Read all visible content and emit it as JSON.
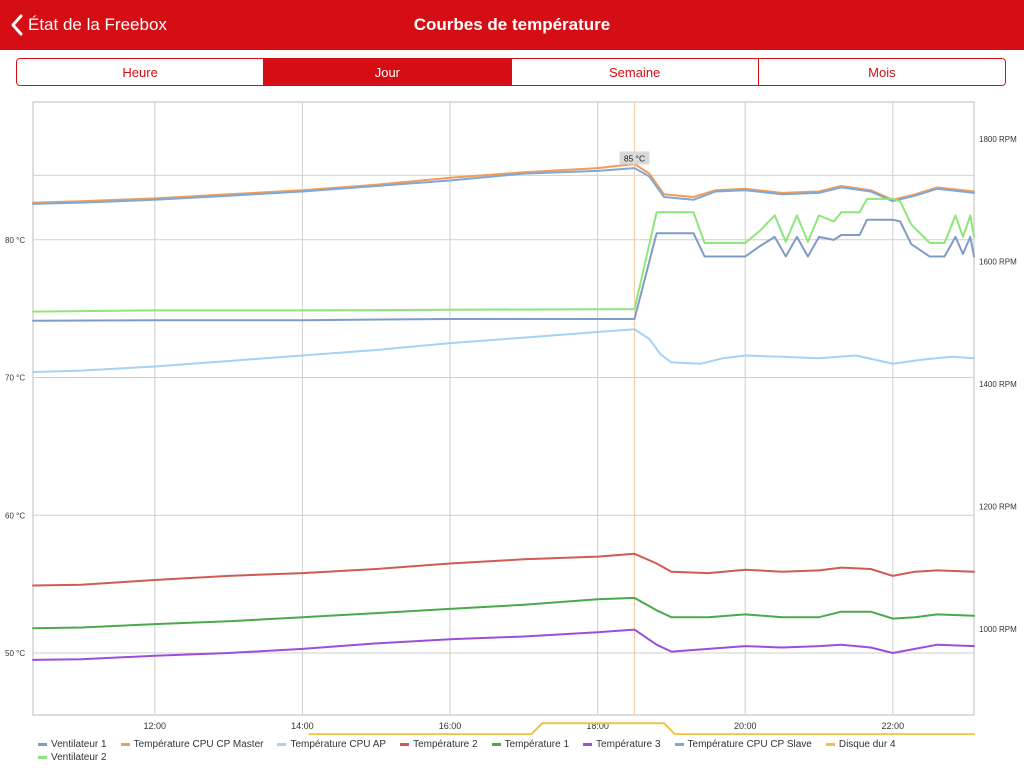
{
  "navbar": {
    "back_label": "État de la Freebox",
    "title": "Courbes de température",
    "background": "#d50d15"
  },
  "segments": [
    {
      "label": "Heure",
      "active": false
    },
    {
      "label": "Jour",
      "active": true
    },
    {
      "label": "Semaine",
      "active": false
    },
    {
      "label": "Mois",
      "active": false
    }
  ],
  "chart_data": {
    "type": "line",
    "x_ticks": [
      "12:00",
      "14:00",
      "16:00",
      "18:00",
      "20:00",
      "22:00"
    ],
    "y_left_ticks": [
      "50 °C",
      "60 °C",
      "70 °C",
      "80 °C"
    ],
    "y_right_ticks": [
      "1000 RPM",
      "1200 RPM",
      "1400 RPM",
      "1600 RPM",
      "1800 RPM"
    ],
    "xlim": [
      10.35,
      23.1
    ],
    "ylim_left": [
      45.5,
      90
    ],
    "ylim_right": [
      860,
      1860
    ],
    "grid": true,
    "tooltip": {
      "label": "85 °C",
      "x": 18.5,
      "y": 85.4
    },
    "legend_position": "bottom",
    "series": [
      {
        "name": "Ventilateur 1",
        "axis": "right",
        "color": "#7f9cc6",
        "points": [
          [
            10.35,
            1503
          ],
          [
            12,
            1504
          ],
          [
            14,
            1504
          ],
          [
            16,
            1506
          ],
          [
            18,
            1506
          ],
          [
            18.5,
            1506
          ],
          [
            18.8,
            1646
          ],
          [
            19.3,
            1646
          ],
          [
            19.45,
            1608
          ],
          [
            20,
            1608
          ],
          [
            20.2,
            1625
          ],
          [
            20.4,
            1640
          ],
          [
            20.55,
            1608
          ],
          [
            20.7,
            1640
          ],
          [
            20.85,
            1608
          ],
          [
            21,
            1640
          ],
          [
            21.2,
            1635
          ],
          [
            21.3,
            1643
          ],
          [
            21.55,
            1643
          ],
          [
            21.65,
            1668
          ],
          [
            22,
            1668
          ],
          [
            22.1,
            1665
          ],
          [
            22.25,
            1628
          ],
          [
            22.5,
            1608
          ],
          [
            22.7,
            1608
          ],
          [
            22.85,
            1640
          ],
          [
            22.95,
            1612
          ],
          [
            23.05,
            1640
          ],
          [
            23.1,
            1608
          ]
        ]
      },
      {
        "name": "Température CPU CP Master",
        "axis": "left",
        "color": "#f39c56",
        "points": [
          [
            10.35,
            82.7
          ],
          [
            11,
            82.8
          ],
          [
            12,
            83
          ],
          [
            13,
            83.3
          ],
          [
            14,
            83.6
          ],
          [
            15,
            84
          ],
          [
            16,
            84.5
          ],
          [
            17,
            84.9
          ],
          [
            18,
            85.2
          ],
          [
            18.5,
            85.5
          ],
          [
            18.7,
            84.8
          ],
          [
            18.9,
            83.3
          ],
          [
            19.3,
            83.1
          ],
          [
            19.6,
            83.6
          ],
          [
            20,
            83.7
          ],
          [
            20.5,
            83.4
          ],
          [
            21,
            83.5
          ],
          [
            21.3,
            83.9
          ],
          [
            21.7,
            83.6
          ],
          [
            22,
            82.9
          ],
          [
            22.3,
            83.3
          ],
          [
            22.6,
            83.8
          ],
          [
            23.1,
            83.5
          ]
        ]
      },
      {
        "name": "Température CPU AP",
        "axis": "left",
        "color": "#a5d2f2",
        "points": [
          [
            10.35,
            70.4
          ],
          [
            11,
            70.5
          ],
          [
            12,
            70.8
          ],
          [
            13,
            71.2
          ],
          [
            14,
            71.6
          ],
          [
            15,
            72
          ],
          [
            16,
            72.5
          ],
          [
            17,
            72.9
          ],
          [
            18,
            73.3
          ],
          [
            18.5,
            73.5
          ],
          [
            18.7,
            72.8
          ],
          [
            18.85,
            71.7
          ],
          [
            19,
            71.1
          ],
          [
            19.4,
            71
          ],
          [
            19.7,
            71.4
          ],
          [
            20,
            71.6
          ],
          [
            20.5,
            71.5
          ],
          [
            21,
            71.4
          ],
          [
            21.5,
            71.6
          ],
          [
            22,
            71
          ],
          [
            22.4,
            71.3
          ],
          [
            22.8,
            71.5
          ],
          [
            23.1,
            71.4
          ]
        ]
      },
      {
        "name": "Température 2",
        "axis": "left",
        "color": "#cf5b57",
        "points": [
          [
            10.35,
            54.9
          ],
          [
            11,
            54.95
          ],
          [
            12,
            55.3
          ],
          [
            13,
            55.6
          ],
          [
            14,
            55.8
          ],
          [
            15,
            56.1
          ],
          [
            16,
            56.5
          ],
          [
            17,
            56.8
          ],
          [
            18,
            57
          ],
          [
            18.5,
            57.2
          ],
          [
            18.8,
            56.5
          ],
          [
            19,
            55.9
          ],
          [
            19.5,
            55.8
          ],
          [
            20,
            56.05
          ],
          [
            20.5,
            55.9
          ],
          [
            21,
            56
          ],
          [
            21.3,
            56.2
          ],
          [
            21.7,
            56.1
          ],
          [
            22,
            55.6
          ],
          [
            22.3,
            55.9
          ],
          [
            22.6,
            56
          ],
          [
            23.1,
            55.9
          ]
        ]
      },
      {
        "name": "Température 1",
        "axis": "left",
        "color": "#4ba84b",
        "points": [
          [
            10.35,
            51.8
          ],
          [
            11,
            51.85
          ],
          [
            12,
            52.1
          ],
          [
            13,
            52.3
          ],
          [
            14,
            52.6
          ],
          [
            15,
            52.9
          ],
          [
            16,
            53.2
          ],
          [
            17,
            53.5
          ],
          [
            18,
            53.9
          ],
          [
            18.5,
            54
          ],
          [
            18.8,
            53.1
          ],
          [
            19,
            52.6
          ],
          [
            19.5,
            52.6
          ],
          [
            20,
            52.8
          ],
          [
            20.5,
            52.6
          ],
          [
            21,
            52.6
          ],
          [
            21.3,
            53
          ],
          [
            21.7,
            53
          ],
          [
            22,
            52.5
          ],
          [
            22.3,
            52.6
          ],
          [
            22.6,
            52.8
          ],
          [
            23.1,
            52.7
          ]
        ]
      },
      {
        "name": "Température 3",
        "axis": "left",
        "color": "#9b4fd6",
        "points": [
          [
            10.35,
            49.5
          ],
          [
            11,
            49.55
          ],
          [
            12,
            49.8
          ],
          [
            13,
            50
          ],
          [
            14,
            50.3
          ],
          [
            15,
            50.7
          ],
          [
            16,
            51
          ],
          [
            17,
            51.2
          ],
          [
            18,
            51.5
          ],
          [
            18.5,
            51.7
          ],
          [
            18.8,
            50.6
          ],
          [
            19,
            50.1
          ],
          [
            19.5,
            50.3
          ],
          [
            20,
            50.5
          ],
          [
            20.5,
            50.4
          ],
          [
            21,
            50.5
          ],
          [
            21.3,
            50.6
          ],
          [
            21.7,
            50.4
          ],
          [
            22,
            50
          ],
          [
            22.3,
            50.3
          ],
          [
            22.6,
            50.6
          ],
          [
            23.1,
            50.5
          ]
        ]
      },
      {
        "name": "Température CPU CP Slave",
        "axis": "left",
        "color": "#7ea8d8",
        "points": [
          [
            10.35,
            82.6
          ],
          [
            11,
            82.7
          ],
          [
            12,
            82.9
          ],
          [
            13,
            83.2
          ],
          [
            14,
            83.5
          ],
          [
            15,
            83.9
          ],
          [
            16,
            84.3
          ],
          [
            17,
            84.8
          ],
          [
            18,
            85
          ],
          [
            18.5,
            85.2
          ],
          [
            18.7,
            84.6
          ],
          [
            18.9,
            83.1
          ],
          [
            19.3,
            82.9
          ],
          [
            19.6,
            83.5
          ],
          [
            20,
            83.6
          ],
          [
            20.5,
            83.3
          ],
          [
            21,
            83.4
          ],
          [
            21.3,
            83.8
          ],
          [
            21.7,
            83.5
          ],
          [
            22,
            82.8
          ],
          [
            22.3,
            83.2
          ],
          [
            22.6,
            83.7
          ],
          [
            23.1,
            83.4
          ]
        ]
      },
      {
        "name": "Disque dur 4",
        "axis": "left",
        "color": "#f0c145",
        "points": [
          [
            10.35,
            43
          ],
          [
            13.9,
            43
          ],
          [
            14.1,
            44.1
          ],
          [
            17.1,
            44.1
          ],
          [
            17.25,
            44.9
          ],
          [
            18.9,
            44.9
          ],
          [
            19.05,
            44.1
          ],
          [
            23.1,
            44.1
          ]
        ]
      },
      {
        "name": "Ventilateur 2",
        "axis": "right",
        "color": "#8ee67b",
        "points": [
          [
            10.35,
            1518
          ],
          [
            12,
            1520
          ],
          [
            14,
            1520
          ],
          [
            16,
            1521
          ],
          [
            18,
            1522
          ],
          [
            18.5,
            1522
          ],
          [
            18.8,
            1680
          ],
          [
            19.3,
            1680
          ],
          [
            19.45,
            1630
          ],
          [
            20,
            1630
          ],
          [
            20.2,
            1650
          ],
          [
            20.4,
            1675
          ],
          [
            20.55,
            1632
          ],
          [
            20.7,
            1675
          ],
          [
            20.85,
            1632
          ],
          [
            21,
            1675
          ],
          [
            21.2,
            1665
          ],
          [
            21.3,
            1680
          ],
          [
            21.55,
            1680
          ],
          [
            21.65,
            1702
          ],
          [
            22,
            1702
          ],
          [
            22.1,
            1698
          ],
          [
            22.25,
            1660
          ],
          [
            22.5,
            1630
          ],
          [
            22.7,
            1630
          ],
          [
            22.85,
            1675
          ],
          [
            22.95,
            1640
          ],
          [
            23.05,
            1675
          ],
          [
            23.1,
            1640
          ]
        ]
      }
    ]
  }
}
